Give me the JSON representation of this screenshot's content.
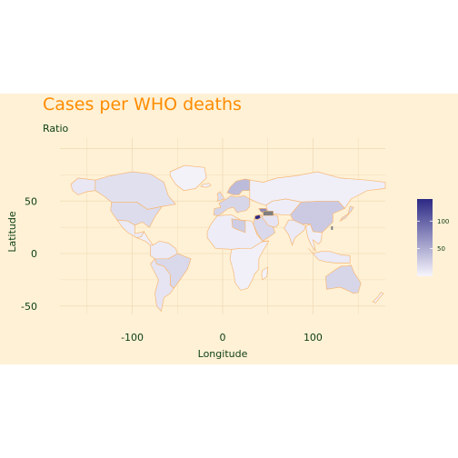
{
  "title": "Cases per WHO deaths",
  "subtitle": "Ratio",
  "chart_data": {
    "type": "choropleth",
    "xlabel": "Longitude",
    "ylabel": "Latitude",
    "x_ticks": [
      -100,
      0,
      100
    ],
    "y_ticks": [
      50,
      0,
      -50
    ],
    "xlim": [
      -180,
      180
    ],
    "ylim": [
      -58,
      110
    ],
    "legend": {
      "placement": "right",
      "ticks": [
        100,
        50
      ],
      "range": [
        0,
        140
      ],
      "low_color": "#f7f6fc",
      "high_color": "#2c2985"
    },
    "colors": {
      "title": "#ff8c00",
      "text": "#0b3d12",
      "panel": "#fff1d6",
      "grid": "#f0dcb5",
      "border": "#f6b877"
    },
    "regions": [
      {
        "name": "Alaska",
        "value": 10
      },
      {
        "name": "Canada",
        "value": 15
      },
      {
        "name": "United States",
        "value": 18
      },
      {
        "name": "Mexico",
        "value": 8
      },
      {
        "name": "Central America",
        "value": 5
      },
      {
        "name": "South America North",
        "value": 8
      },
      {
        "name": "Brazil",
        "value": 20
      },
      {
        "name": "South America South",
        "value": 12
      },
      {
        "name": "Greenland",
        "value": 3
      },
      {
        "name": "Iceland",
        "value": 5
      },
      {
        "name": "Europe West",
        "value": 22
      },
      {
        "name": "Scandinavia",
        "value": 40
      },
      {
        "name": "Russia",
        "value": 5
      },
      {
        "name": "Africa North",
        "value": 6
      },
      {
        "name": "Africa South",
        "value": 4
      },
      {
        "name": "Middle East",
        "value": 20
      },
      {
        "name": "Iran",
        "value": 12
      },
      {
        "name": "Central Asia",
        "value": 6
      },
      {
        "name": "China",
        "value": 30
      },
      {
        "name": "India",
        "value": 8
      },
      {
        "name": "Southeast Asia",
        "value": 5
      },
      {
        "name": "Japan",
        "value": 20
      },
      {
        "name": "Australia",
        "value": 22
      },
      {
        "name": "New Zealand",
        "value": 4
      },
      {
        "name": "Madagascar",
        "value": 3
      },
      {
        "name": "UK",
        "value": 18
      },
      {
        "name": "Libya",
        "value": 28
      },
      {
        "name": "Syria",
        "value": 140
      },
      {
        "name": "Caucasus",
        "value": 75
      },
      {
        "name": "Indonesia",
        "value": 8
      }
    ]
  }
}
